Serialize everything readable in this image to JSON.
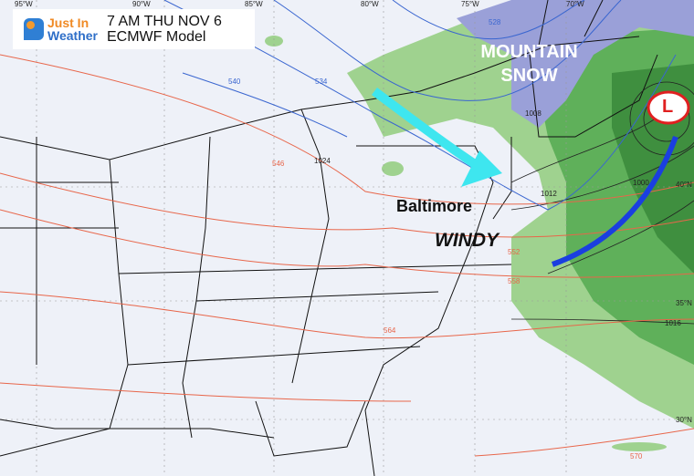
{
  "header": {
    "logo_line1": "Just In",
    "logo_line2": "Weather",
    "time": "7 AM THU NOV 6",
    "model": "ECMWF Model"
  },
  "annotations": {
    "mountain_snow_line1": "MOUNTAIN",
    "mountain_snow_line2": "SNOW",
    "city": "Baltimore",
    "windy": "WINDY",
    "low": "L"
  },
  "longitudes": [
    "95°W",
    "90°W",
    "85°W",
    "80°W",
    "75°W",
    "70°W"
  ],
  "latitudes": [
    "40°N",
    "35°N",
    "30°N"
  ],
  "height_contours": [
    "528",
    "534",
    "540",
    "546",
    "552",
    "558",
    "564",
    "570"
  ],
  "pressure_contours": [
    "1024",
    "1016",
    "1012",
    "1008",
    "1000"
  ],
  "colors": {
    "thickness": "#e8664a",
    "low_thickness": "#3a66d0",
    "isobar": "#222222",
    "rain": "#5fb05a",
    "snow": "#8c8fd0",
    "arrow": "#3ee6ef",
    "front": "#1a3fe0",
    "low": "#e02020"
  }
}
